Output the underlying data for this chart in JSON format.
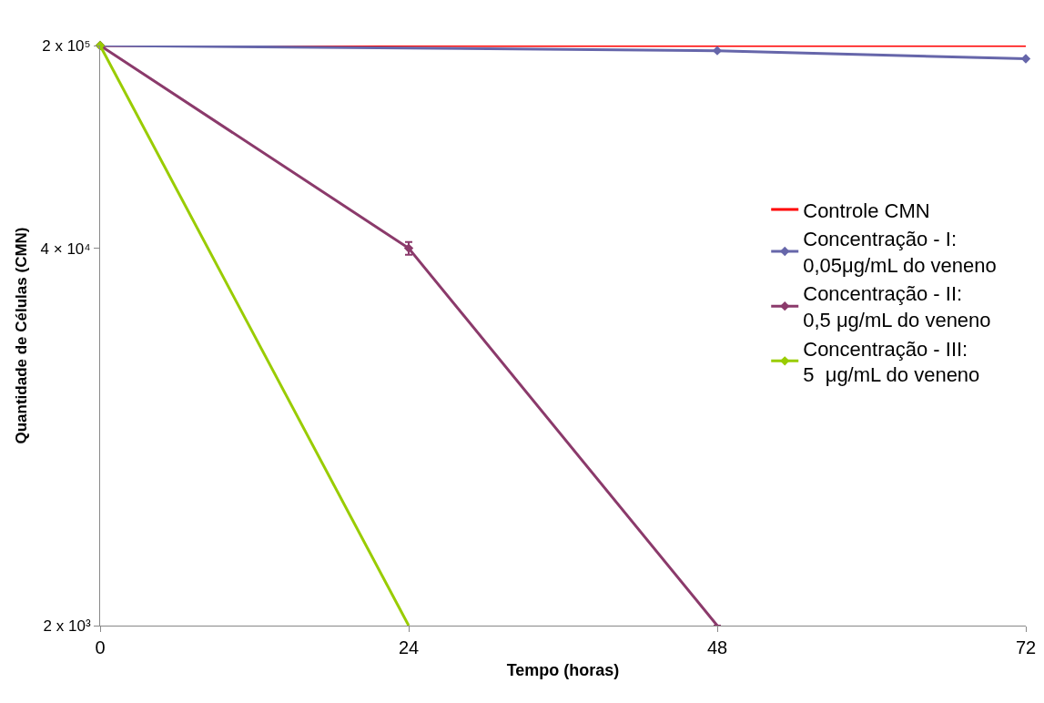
{
  "chart_data": {
    "type": "line",
    "xlabel": "Tempo (horas)",
    "ylabel": "Quantidade de Células (CMN)",
    "x": [
      0,
      24,
      48,
      72
    ],
    "xlim": [
      0,
      72
    ],
    "xticks": [
      0,
      24,
      48,
      72
    ],
    "log": "y",
    "ylim": [
      2000,
      200000
    ],
    "yticks": [
      {
        "value": 2000,
        "label": "2 x 10³"
      },
      {
        "value": 40000,
        "label": "4 × 10⁴"
      },
      {
        "value": 200000,
        "label": "2 x 10⁵"
      }
    ],
    "grid": false,
    "legend": "right",
    "marker": "diamond",
    "line_style": "solid",
    "series": [
      {
        "name": "Controle CMN",
        "color": "#ff0000",
        "marker": "none",
        "values": [
          200000,
          200000,
          200000,
          200000
        ]
      },
      {
        "name": "Concentração - I:\n0,05μg/mL do veneno",
        "color": "#6666aa",
        "values": [
          200000,
          null,
          192000,
          180000
        ],
        "x": [
          0,
          null,
          48,
          72
        ]
      },
      {
        "name": "Concentração - II:\n0,5 μg/mL do veneno",
        "color": "#8b3a6b",
        "values": [
          200000,
          40000,
          2000,
          null
        ],
        "errors": [
          null,
          2000,
          null,
          null
        ]
      },
      {
        "name": "Concentração - III:\n5  μg/mL do veneno",
        "color": "#99cc00",
        "values": [
          200000,
          2000,
          null,
          null
        ]
      }
    ]
  }
}
